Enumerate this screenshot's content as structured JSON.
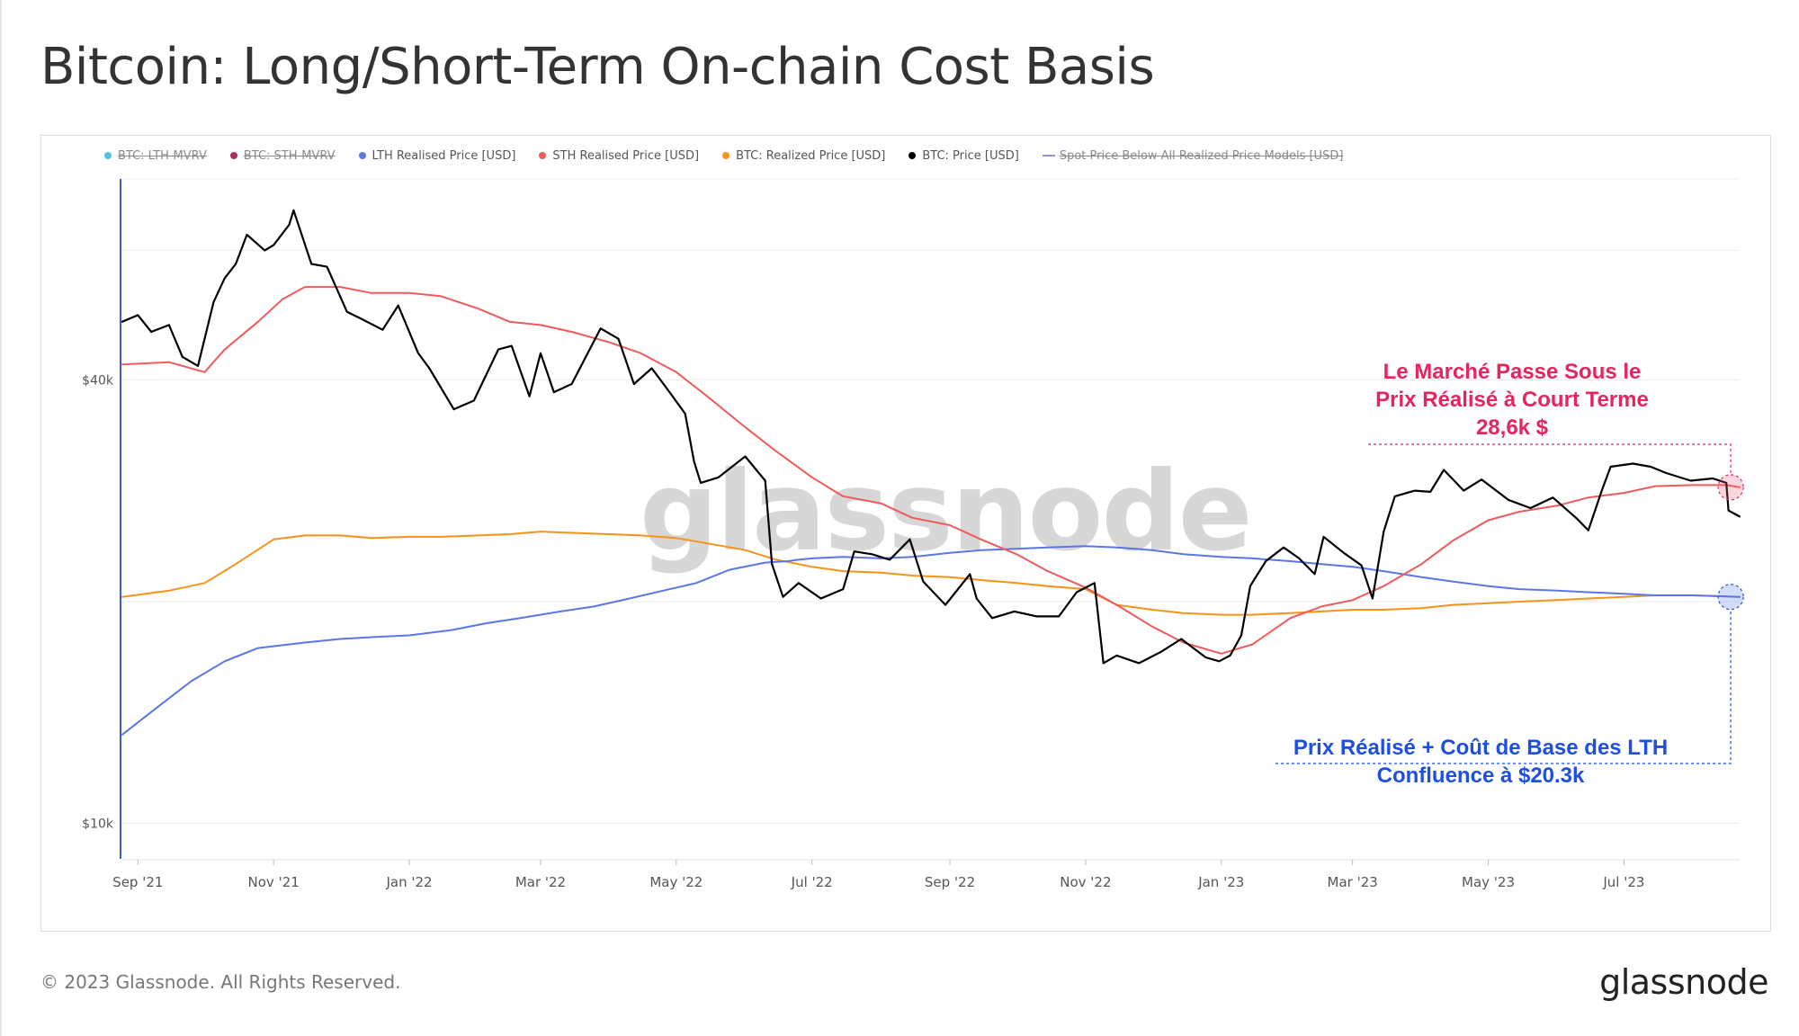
{
  "title": "Bitcoin: Long/Short-Term On-chain Cost Basis",
  "copyright": "© 2023 Glassnode. All Rights Reserved.",
  "brand": "glassnode",
  "watermark": "glassnode",
  "chart_data": {
    "type": "line",
    "title": "Bitcoin: Long/Short-Term On-chain Cost Basis",
    "y_scale": "log",
    "ylim": [
      9000,
      75000
    ],
    "xlim": [
      "2021-08-25",
      "2023-08-22"
    ],
    "x_ticks": [
      {
        "date": "2021-09-01",
        "label": "Sep '21"
      },
      {
        "date": "2021-11-01",
        "label": "Nov '21"
      },
      {
        "date": "2022-01-01",
        "label": "Jan '22"
      },
      {
        "date": "2022-03-01",
        "label": "Mar '22"
      },
      {
        "date": "2022-05-01",
        "label": "May '22"
      },
      {
        "date": "2022-07-01",
        "label": "Jul '22"
      },
      {
        "date": "2022-09-01",
        "label": "Sep '22"
      },
      {
        "date": "2022-11-01",
        "label": "Nov '22"
      },
      {
        "date": "2023-01-01",
        "label": "Jan '23"
      },
      {
        "date": "2023-03-01",
        "label": "Mar '23"
      },
      {
        "date": "2023-05-01",
        "label": "May '23"
      },
      {
        "date": "2023-07-01",
        "label": "Jul '23"
      }
    ],
    "y_ticks": [
      {
        "value": 10000,
        "label": "$10k"
      },
      {
        "value": 40000,
        "label": "$40k"
      }
    ],
    "grid": true,
    "legend_position": "top-left",
    "legend": [
      {
        "name": "BTC: LTH-MVRV",
        "color": "#4ec3e0",
        "hidden": true,
        "marker": "dot"
      },
      {
        "name": "BTC: STH-MVRV",
        "color": "#b0305a",
        "hidden": true,
        "marker": "dot"
      },
      {
        "name": "LTH Realised Price [USD]",
        "color": "#5b76e6",
        "hidden": false,
        "marker": "dot"
      },
      {
        "name": "STH Realised Price [USD]",
        "color": "#f05a5a",
        "hidden": false,
        "marker": "dot"
      },
      {
        "name": "BTC: Realized Price [USD]",
        "color": "#f7931a",
        "hidden": false,
        "marker": "dot"
      },
      {
        "name": "BTC: Price [USD]",
        "color": "#000000",
        "hidden": false,
        "marker": "dot"
      },
      {
        "name": "Spot Price Below All Realized Price Models [USD]",
        "color": "#a58bd6",
        "hidden": true,
        "marker": "line"
      }
    ],
    "series": [
      {
        "name": "BTC: Price [USD]",
        "color": "#000000",
        "x": [
          "2021-08-25",
          "2021-09-01",
          "2021-09-07",
          "2021-09-15",
          "2021-09-21",
          "2021-09-28",
          "2021-10-05",
          "2021-10-10",
          "2021-10-15",
          "2021-10-20",
          "2021-10-28",
          "2021-11-01",
          "2021-11-08",
          "2021-11-10",
          "2021-11-18",
          "2021-11-25",
          "2021-12-04",
          "2021-12-10",
          "2021-12-20",
          "2021-12-27",
          "2022-01-05",
          "2022-01-10",
          "2022-01-21",
          "2022-01-30",
          "2022-02-10",
          "2022-02-16",
          "2022-02-24",
          "2022-03-01",
          "2022-03-07",
          "2022-03-15",
          "2022-03-28",
          "2022-04-05",
          "2022-04-12",
          "2022-04-20",
          "2022-04-28",
          "2022-05-05",
          "2022-05-09",
          "2022-05-12",
          "2022-05-20",
          "2022-06-01",
          "2022-06-10",
          "2022-06-13",
          "2022-06-18",
          "2022-06-25",
          "2022-07-05",
          "2022-07-15",
          "2022-07-20",
          "2022-07-28",
          "2022-08-05",
          "2022-08-14",
          "2022-08-20",
          "2022-08-30",
          "2022-09-10",
          "2022-09-13",
          "2022-09-20",
          "2022-09-30",
          "2022-10-10",
          "2022-10-20",
          "2022-10-28",
          "2022-11-05",
          "2022-11-09",
          "2022-11-15",
          "2022-11-25",
          "2022-12-05",
          "2022-12-14",
          "2022-12-25",
          "2022-12-31",
          "2023-01-05",
          "2023-01-10",
          "2023-01-14",
          "2023-01-21",
          "2023-01-29",
          "2023-02-05",
          "2023-02-12",
          "2023-02-16",
          "2023-02-25",
          "2023-03-05",
          "2023-03-10",
          "2023-03-15",
          "2023-03-20",
          "2023-03-29",
          "2023-04-05",
          "2023-04-11",
          "2023-04-20",
          "2023-04-28",
          "2023-05-10",
          "2023-05-20",
          "2023-05-30",
          "2023-06-10",
          "2023-06-15",
          "2023-06-21",
          "2023-06-25",
          "2023-07-05",
          "2023-07-13",
          "2023-07-20",
          "2023-07-31",
          "2023-08-10",
          "2023-08-16",
          "2023-08-17",
          "2023-08-22"
        ],
        "y": [
          48000,
          49000,
          46500,
          47500,
          43000,
          41800,
          51000,
          55000,
          57500,
          63000,
          60000,
          61000,
          65000,
          68000,
          57500,
          57000,
          49500,
          48500,
          46800,
          50500,
          43500,
          41500,
          36500,
          37500,
          44000,
          44500,
          38000,
          43500,
          38500,
          39500,
          47000,
          45500,
          39500,
          41500,
          38500,
          36000,
          31000,
          29000,
          29500,
          31500,
          29200,
          22500,
          20300,
          21200,
          20200,
          20800,
          23400,
          23200,
          22800,
          24300,
          21300,
          19800,
          21800,
          20200,
          19000,
          19400,
          19100,
          19100,
          20600,
          21200,
          16500,
          16900,
          16500,
          17100,
          17800,
          16800,
          16600,
          16900,
          18000,
          21000,
          22700,
          23700,
          22900,
          21800,
          24500,
          23300,
          22400,
          20200,
          24900,
          27800,
          28300,
          28200,
          30200,
          28300,
          29300,
          27500,
          26800,
          27700,
          25900,
          25000,
          28300,
          30500,
          30800,
          30500,
          29900,
          29200,
          29400,
          29000,
          26600,
          26100
        ]
      },
      {
        "name": "STH Realised Price [USD]",
        "color": "#f05a5a",
        "x": [
          "2021-08-25",
          "2021-09-15",
          "2021-10-01",
          "2021-10-10",
          "2021-10-25",
          "2021-11-05",
          "2021-11-15",
          "2021-12-01",
          "2021-12-15",
          "2022-01-01",
          "2022-01-15",
          "2022-02-01",
          "2022-02-15",
          "2022-03-01",
          "2022-03-15",
          "2022-04-01",
          "2022-04-15",
          "2022-05-01",
          "2022-05-15",
          "2022-06-01",
          "2022-06-15",
          "2022-07-01",
          "2022-07-15",
          "2022-08-01",
          "2022-08-15",
          "2022-09-01",
          "2022-09-15",
          "2022-10-01",
          "2022-10-15",
          "2022-11-01",
          "2022-11-15",
          "2022-12-01",
          "2022-12-15",
          "2023-01-01",
          "2023-01-15",
          "2023-02-01",
          "2023-02-15",
          "2023-03-01",
          "2023-03-15",
          "2023-04-01",
          "2023-04-15",
          "2023-05-01",
          "2023-05-15",
          "2023-06-01",
          "2023-06-15",
          "2023-07-01",
          "2023-07-15",
          "2023-08-01",
          "2023-08-16",
          "2023-08-22"
        ],
        "y": [
          42000,
          42300,
          41000,
          44000,
          48000,
          51500,
          53500,
          53500,
          52500,
          52500,
          52000,
          50000,
          48000,
          47500,
          46500,
          45000,
          43500,
          41000,
          38000,
          34500,
          32000,
          29500,
          27800,
          27200,
          26000,
          25400,
          24300,
          23200,
          22000,
          20900,
          19800,
          18500,
          17600,
          17000,
          17500,
          19000,
          19700,
          20100,
          21000,
          22500,
          24200,
          25800,
          26500,
          27000,
          27700,
          28100,
          28700,
          28800,
          28800,
          28600
        ]
      },
      {
        "name": "BTC: Realized Price [USD]",
        "color": "#f7931a",
        "x": [
          "2021-08-25",
          "2021-09-15",
          "2021-10-01",
          "2021-10-15",
          "2021-11-01",
          "2021-11-15",
          "2021-12-01",
          "2021-12-15",
          "2022-01-01",
          "2022-01-15",
          "2022-02-01",
          "2022-02-15",
          "2022-03-01",
          "2022-03-15",
          "2022-04-01",
          "2022-04-15",
          "2022-05-01",
          "2022-05-15",
          "2022-06-01",
          "2022-06-15",
          "2022-07-01",
          "2022-07-15",
          "2022-08-01",
          "2022-08-15",
          "2022-09-01",
          "2022-09-15",
          "2022-10-01",
          "2022-10-15",
          "2022-11-01",
          "2022-11-15",
          "2022-12-01",
          "2022-12-15",
          "2023-01-01",
          "2023-01-15",
          "2023-02-01",
          "2023-02-15",
          "2023-03-01",
          "2023-03-15",
          "2023-04-01",
          "2023-04-15",
          "2023-05-01",
          "2023-05-15",
          "2023-06-01",
          "2023-06-15",
          "2023-07-01",
          "2023-07-15",
          "2023-08-01",
          "2023-08-22"
        ],
        "y": [
          20300,
          20700,
          21200,
          22500,
          24300,
          24600,
          24600,
          24400,
          24500,
          24500,
          24600,
          24700,
          24900,
          24800,
          24700,
          24600,
          24400,
          24000,
          23500,
          22800,
          22300,
          22000,
          21900,
          21700,
          21600,
          21400,
          21200,
          21000,
          20800,
          19800,
          19500,
          19300,
          19200,
          19200,
          19300,
          19400,
          19500,
          19500,
          19600,
          19800,
          19900,
          20000,
          20100,
          20200,
          20300,
          20400,
          20400,
          20300
        ]
      },
      {
        "name": "LTH Realised Price [USD]",
        "color": "#5b76e6",
        "x": [
          "2021-08-25",
          "2021-09-10",
          "2021-09-25",
          "2021-10-10",
          "2021-10-25",
          "2021-11-15",
          "2021-12-01",
          "2021-12-15",
          "2022-01-01",
          "2022-01-20",
          "2022-02-05",
          "2022-02-20",
          "2022-03-10",
          "2022-03-25",
          "2022-04-10",
          "2022-04-25",
          "2022-05-10",
          "2022-05-25",
          "2022-06-10",
          "2022-06-20",
          "2022-06-25",
          "2022-07-01",
          "2022-07-15",
          "2022-08-01",
          "2022-08-15",
          "2022-09-01",
          "2022-09-15",
          "2022-10-01",
          "2022-10-15",
          "2022-11-01",
          "2022-11-15",
          "2022-12-01",
          "2022-12-15",
          "2023-01-01",
          "2023-01-15",
          "2023-02-01",
          "2023-02-15",
          "2023-03-01",
          "2023-03-15",
          "2023-04-01",
          "2023-04-15",
          "2023-05-01",
          "2023-05-15",
          "2023-06-01",
          "2023-06-15",
          "2023-07-01",
          "2023-07-15",
          "2023-08-01",
          "2023-08-22"
        ],
        "y": [
          13200,
          14400,
          15600,
          16600,
          17300,
          17600,
          17800,
          17900,
          18000,
          18300,
          18700,
          19000,
          19400,
          19700,
          20200,
          20700,
          21200,
          22100,
          22600,
          22700,
          22800,
          22900,
          23000,
          22900,
          23000,
          23300,
          23500,
          23600,
          23700,
          23800,
          23700,
          23500,
          23200,
          23000,
          22900,
          22700,
          22500,
          22300,
          22000,
          21600,
          21300,
          21000,
          20800,
          20700,
          20600,
          20500,
          20400,
          20400,
          20300
        ]
      }
    ],
    "annotations": [
      {
        "lines": [
          "Le Marché Passe Sous le",
          "Prix Réalisé à Court Terme",
          "28,6k $"
        ],
        "color": "#e6245e",
        "x": "2023-08-18",
        "y": 28600
      },
      {
        "lines": [
          "Prix Réalisé + Coût de Base des LTH",
          "Confluence à $20.3k"
        ],
        "color": "#1e4fe0",
        "x": "2023-08-18",
        "y": 20300
      }
    ]
  }
}
